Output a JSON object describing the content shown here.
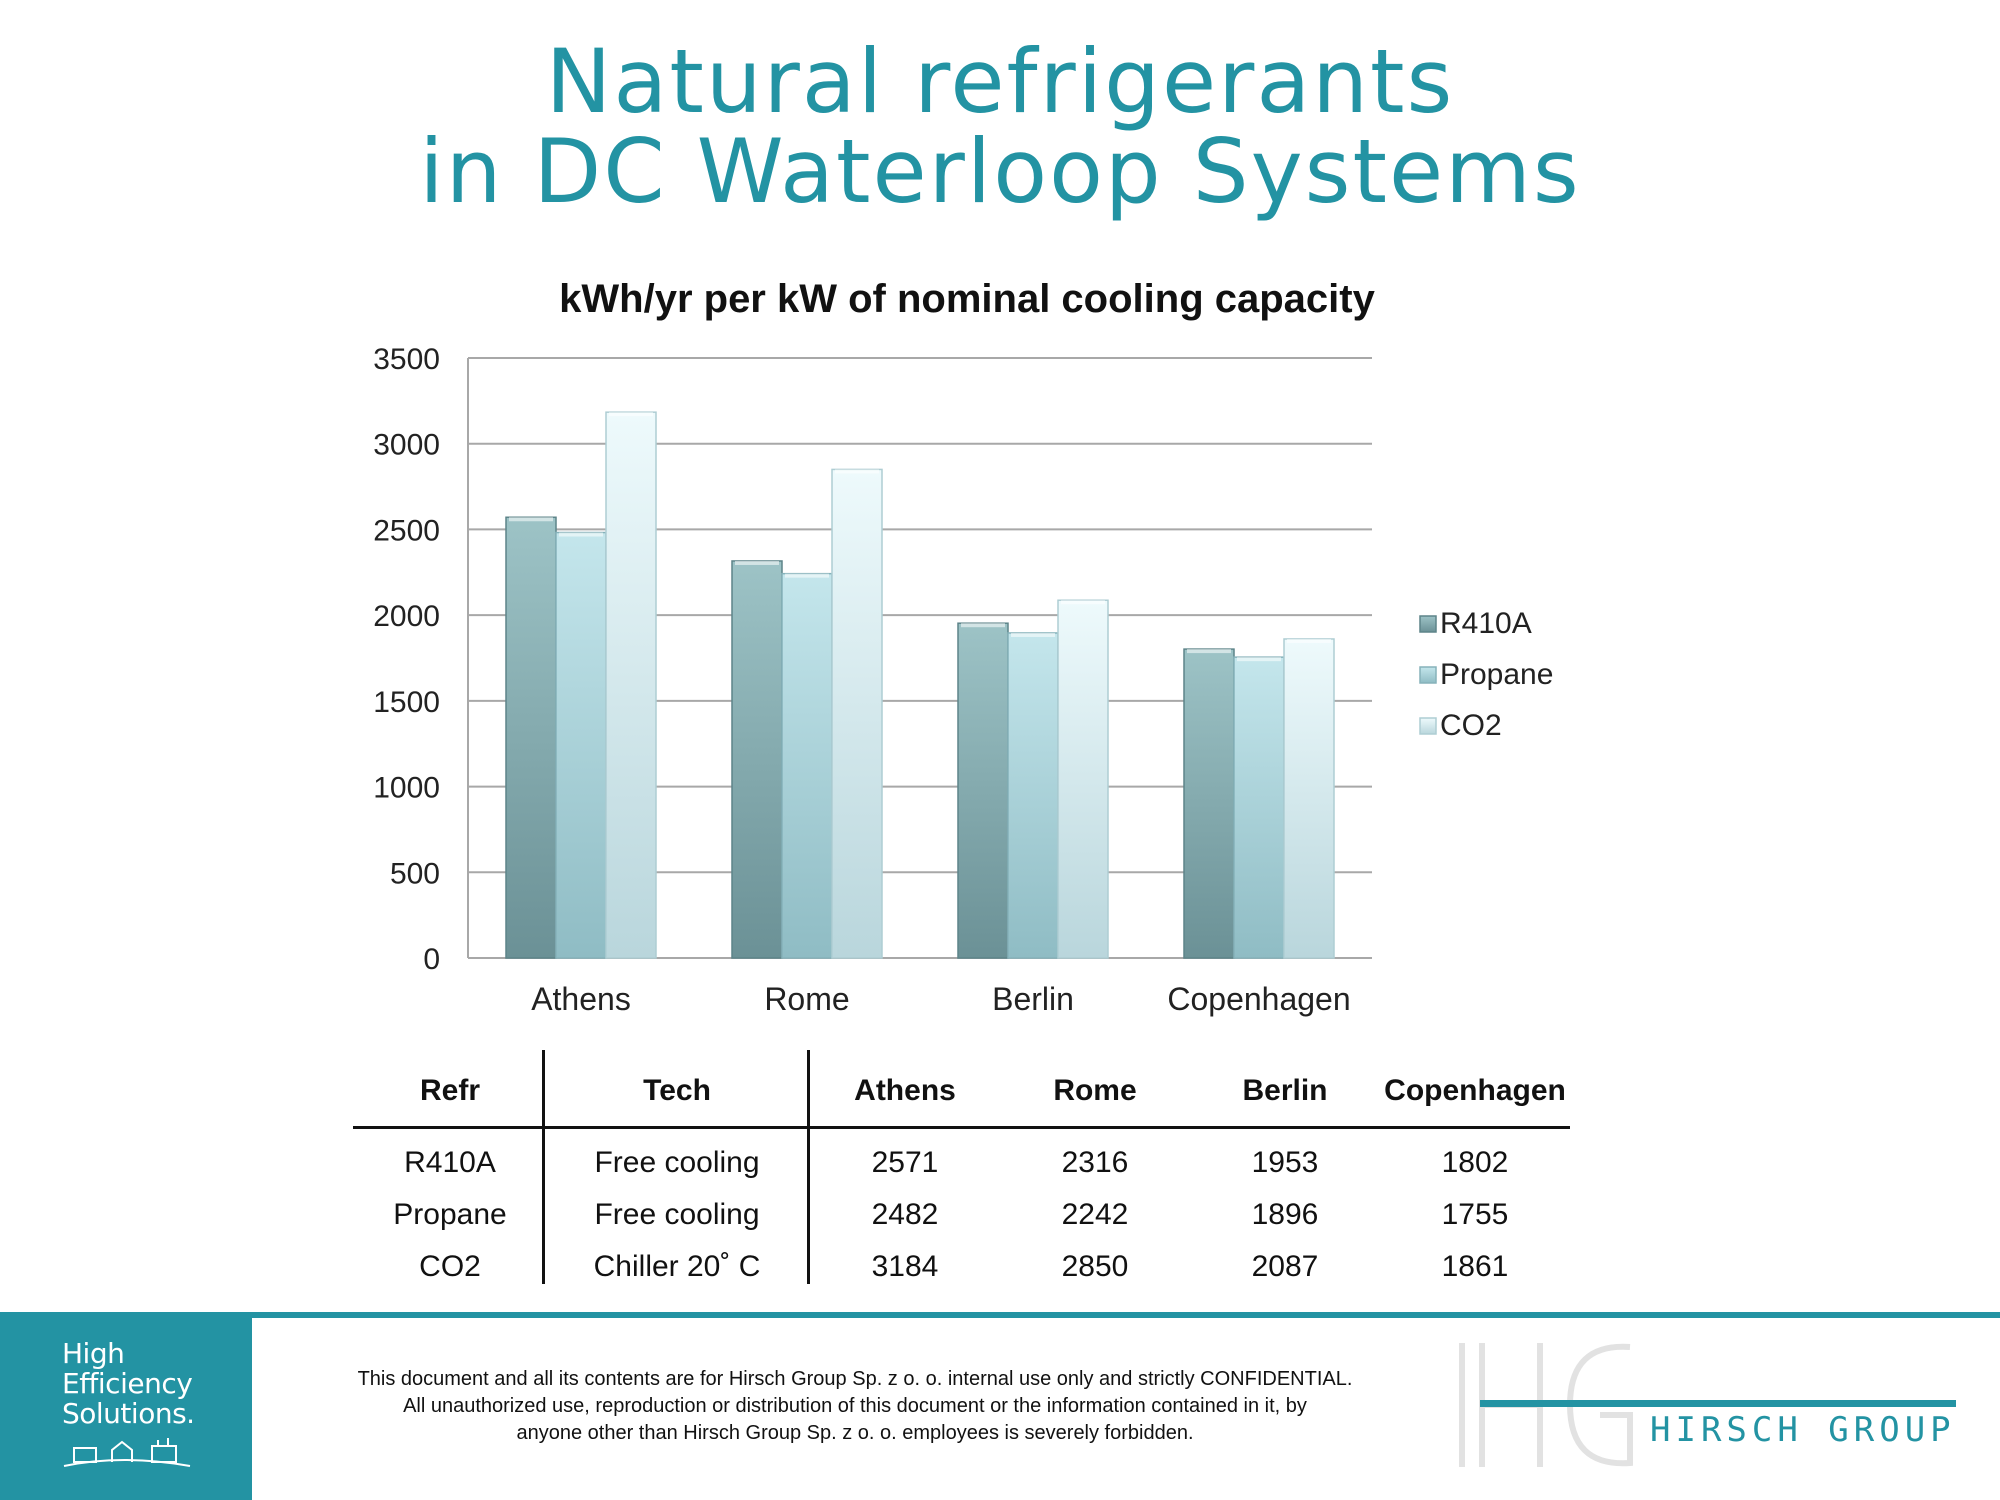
{
  "header": {
    "title_line1": "Natural refrigerants",
    "title_line2": "in DC Waterloop Systems"
  },
  "colors": {
    "accent": "#2393a3",
    "r410a": "#7fa6aa",
    "propane": "#a7d3da",
    "co2": "#d2eef2"
  },
  "chart_data": {
    "type": "bar",
    "title": "kWh/yr per kW of nominal cooling capacity",
    "xlabel": "",
    "ylabel": "",
    "categories": [
      "Athens",
      "Rome",
      "Berlin",
      "Copenhagen"
    ],
    "series": [
      {
        "name": "R410A",
        "values": [
          2571,
          2316,
          1953,
          1802
        ]
      },
      {
        "name": "Propane",
        "values": [
          2482,
          2242,
          1896,
          1755
        ]
      },
      {
        "name": "CO2",
        "values": [
          3184,
          2850,
          2087,
          1861
        ]
      }
    ],
    "ylim": [
      0,
      3500
    ],
    "yticks": [
      0,
      500,
      1000,
      1500,
      2000,
      2500,
      3000,
      3500
    ],
    "grid": true,
    "legend": "right"
  },
  "table": {
    "headers": [
      "Refr",
      "Tech",
      "Athens",
      "Rome",
      "Berlin",
      "Copenhagen"
    ],
    "rows": [
      [
        "R410A",
        "Free cooling",
        "2571",
        "2316",
        "1953",
        "1802"
      ],
      [
        "Propane",
        "Free cooling",
        "2482",
        "2242",
        "1896",
        "1755"
      ],
      [
        "CO2",
        "Chiller  20˚ C",
        "3184",
        "2850",
        "2087",
        "1861"
      ]
    ]
  },
  "footer": {
    "brand_lines": [
      "High",
      "Efficiency",
      "Solutions."
    ],
    "disclaimer": [
      "This document and all its contents are for Hirsch Group Sp. z o. o. internal use only and strictly CONFIDENTIAL.",
      "All unauthorized use, reproduction or distribution of this document or the information contained in it, by",
      "anyone other than Hirsch Group Sp. z o. o. employees is severely forbidden."
    ],
    "logo_text": "HIRSCH GROUP"
  }
}
